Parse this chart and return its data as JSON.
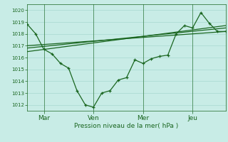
{
  "xlabel": "Pression niveau de la mer( hPa )",
  "bg_color": "#c8ece6",
  "grid_color": "#a8d8d0",
  "line_color": "#1a6620",
  "ylim": [
    1011.5,
    1020.5
  ],
  "yticks": [
    1012,
    1013,
    1014,
    1015,
    1016,
    1017,
    1018,
    1019,
    1020
  ],
  "day_labels": [
    "Mar",
    "Ven",
    "Mer",
    "Jeu"
  ],
  "day_positions": [
    0.083,
    0.333,
    0.583,
    0.833
  ],
  "vline_positions": [
    0.083,
    0.333,
    0.583,
    0.833
  ],
  "series1_x": [
    0.0,
    0.042,
    0.083,
    0.125,
    0.167,
    0.208,
    0.25,
    0.292,
    0.333,
    0.375,
    0.417,
    0.458,
    0.5,
    0.542,
    0.583,
    0.625,
    0.667,
    0.708,
    0.75,
    0.792,
    0.833,
    0.875,
    0.917,
    0.958,
    1.0
  ],
  "series1_y": [
    1018.8,
    1018.0,
    1016.7,
    1016.3,
    1015.5,
    1015.1,
    1013.2,
    1012.0,
    1011.8,
    1013.0,
    1013.2,
    1014.1,
    1014.3,
    1015.8,
    1015.5,
    1015.9,
    1016.1,
    1016.2,
    1018.0,
    1018.7,
    1018.5,
    1019.8,
    1018.9,
    1018.2,
    1018.2
  ],
  "series2_x": [
    0.0,
    1.0
  ],
  "series2_y": [
    1017.0,
    1018.2
  ],
  "series3_x": [
    0.0,
    1.0
  ],
  "series3_y": [
    1016.8,
    1018.5
  ],
  "series4_x": [
    0.0,
    1.0
  ],
  "series4_y": [
    1016.5,
    1018.7
  ],
  "xlim": [
    0.0,
    1.0
  ]
}
